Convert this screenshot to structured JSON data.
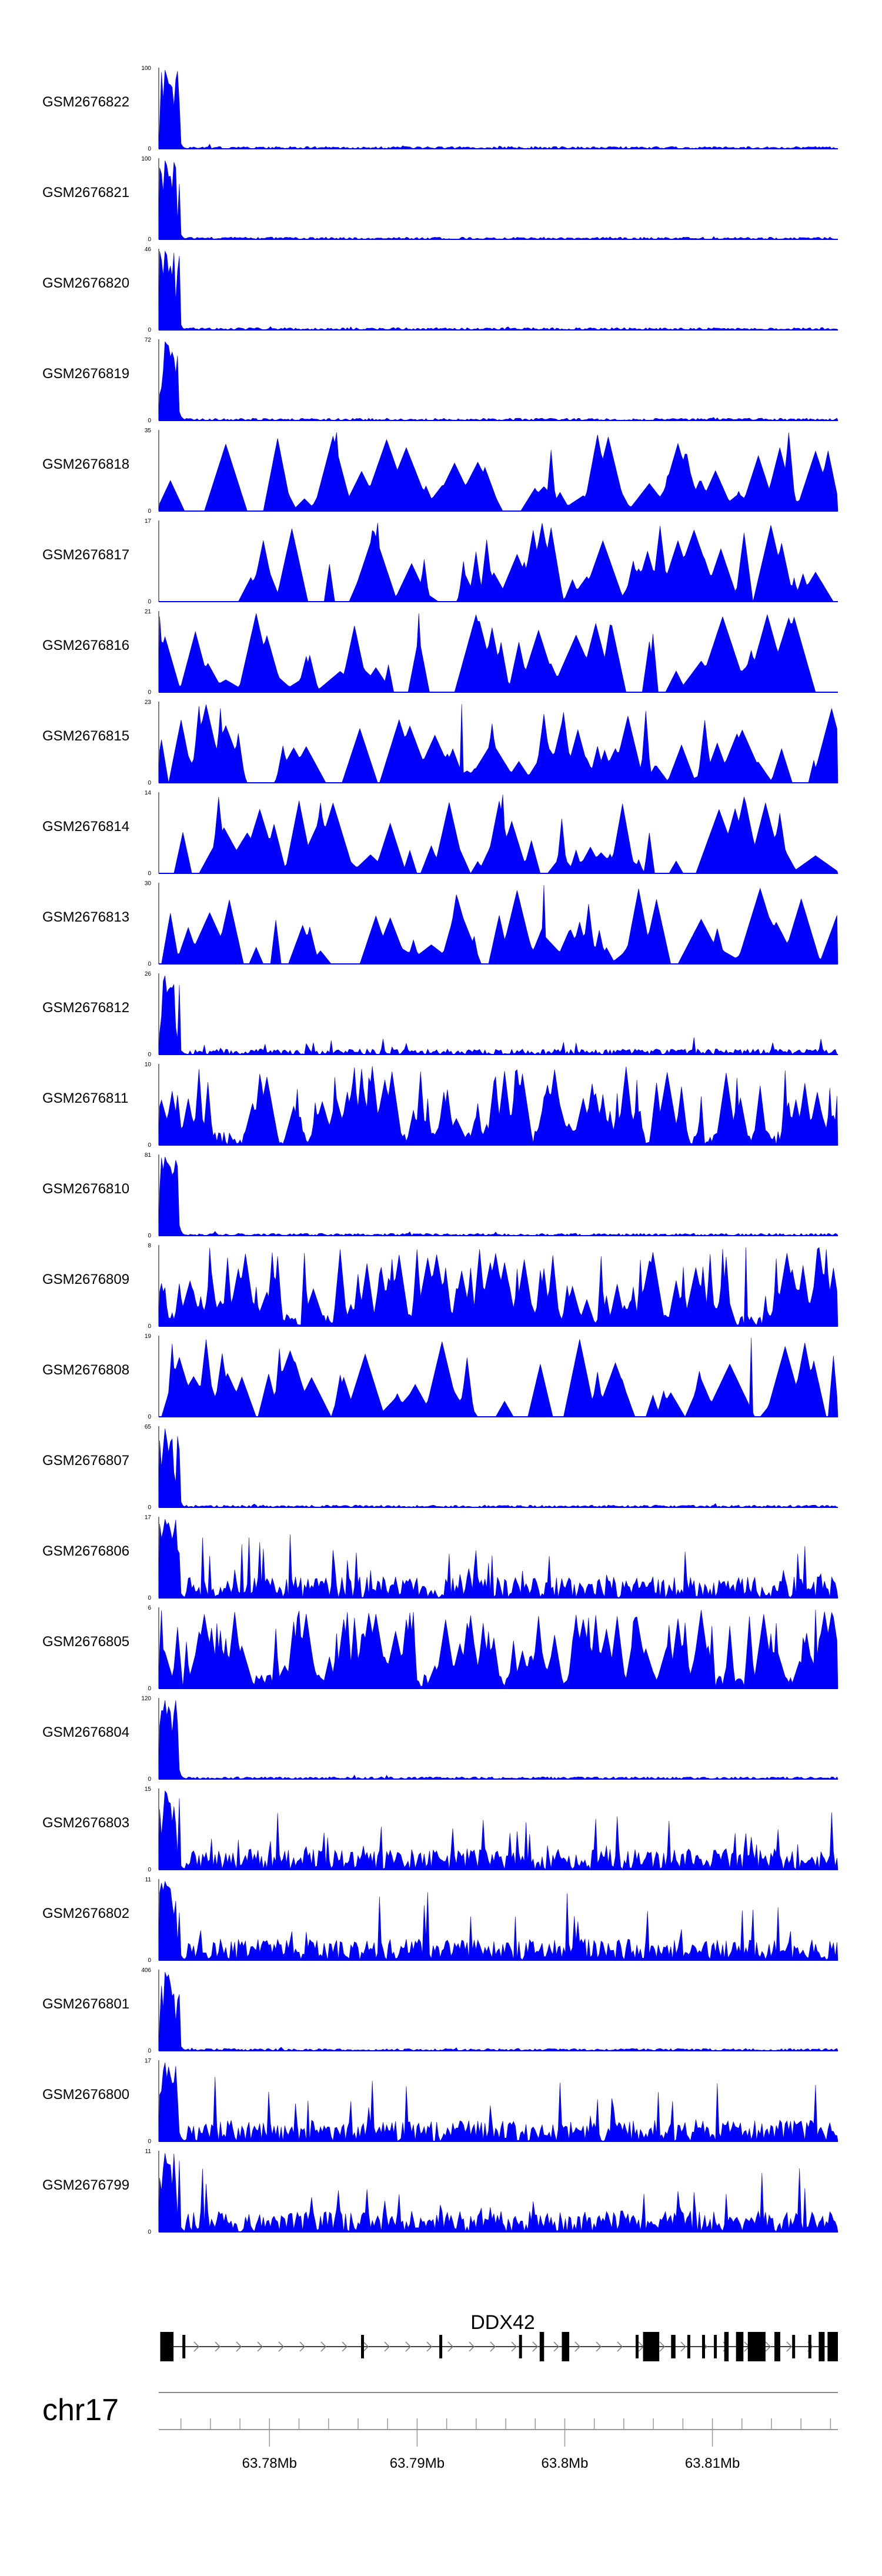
{
  "chart_data": {
    "type": "area",
    "title": "",
    "chromosome": "chr17",
    "x_unit": "Mb",
    "xlim": [
      63.7725,
      63.8185
    ],
    "color": "#0000ff",
    "axis_color": "#000000",
    "tracks": [
      {
        "name": "GSM2676822",
        "ymax": "100",
        "ymin": "0",
        "pattern": "early_peak"
      },
      {
        "name": "GSM2676821",
        "ymax": "100",
        "ymin": "0",
        "pattern": "early_peak"
      },
      {
        "name": "GSM2676820",
        "ymax": "46",
        "ymin": "0",
        "pattern": "early_peak"
      },
      {
        "name": "GSM2676819",
        "ymax": "72",
        "ymin": "0",
        "pattern": "early_peak"
      },
      {
        "name": "GSM2676818",
        "ymax": "35",
        "ymin": "0",
        "pattern": "sparse_spikes"
      },
      {
        "name": "GSM2676817",
        "ymax": "17",
        "ymin": "0",
        "pattern": "sparse_spikes"
      },
      {
        "name": "GSM2676816",
        "ymax": "21",
        "ymin": "0",
        "pattern": "sparse_spikes"
      },
      {
        "name": "GSM2676815",
        "ymax": "23",
        "ymin": "0",
        "pattern": "sparse_spikes"
      },
      {
        "name": "GSM2676814",
        "ymax": "14",
        "ymin": "0",
        "pattern": "sparse_spikes"
      },
      {
        "name": "GSM2676813",
        "ymax": "30",
        "ymin": "0",
        "pattern": "sparse_spikes"
      },
      {
        "name": "GSM2676812",
        "ymax": "26",
        "ymin": "0",
        "pattern": "early_peak_noise"
      },
      {
        "name": "GSM2676811",
        "ymax": "10",
        "ymin": "0",
        "pattern": "dense"
      },
      {
        "name": "GSM2676810",
        "ymax": "81",
        "ymin": "0",
        "pattern": "early_peak"
      },
      {
        "name": "GSM2676809",
        "ymax": "8",
        "ymin": "0",
        "pattern": "dense"
      },
      {
        "name": "GSM2676808",
        "ymax": "19",
        "ymin": "0",
        "pattern": "sparse_spikes"
      },
      {
        "name": "GSM2676807",
        "ymax": "65",
        "ymin": "0",
        "pattern": "early_peak"
      },
      {
        "name": "GSM2676806",
        "ymax": "17",
        "ymin": "0",
        "pattern": "early_peak_dense"
      },
      {
        "name": "GSM2676805",
        "ymax": "6",
        "ymin": "0",
        "pattern": "dense"
      },
      {
        "name": "GSM2676804",
        "ymax": "120",
        "ymin": "0",
        "pattern": "early_peak"
      },
      {
        "name": "GSM2676803",
        "ymax": "15",
        "ymin": "0",
        "pattern": "early_peak_dense"
      },
      {
        "name": "GSM2676802",
        "ymax": "11",
        "ymin": "0",
        "pattern": "early_peak_dense"
      },
      {
        "name": "GSM2676801",
        "ymax": "406",
        "ymin": "0",
        "pattern": "early_peak"
      },
      {
        "name": "GSM2676800",
        "ymax": "17",
        "ymin": "0",
        "pattern": "early_peak_dense"
      },
      {
        "name": "GSM2676799",
        "ymax": "11",
        "ymin": "0",
        "pattern": "early_peak_dense"
      }
    ],
    "gene": {
      "name": "DDX42",
      "start": 63.7725,
      "end": 63.8185,
      "strand": "+",
      "exons": [
        [
          63.7726,
          63.7735
        ],
        [
          63.7741,
          63.7743
        ],
        [
          63.7862,
          63.7864
        ],
        [
          63.7915,
          63.7917
        ],
        [
          63.7969,
          63.7971
        ],
        [
          63.7983,
          63.7986
        ],
        [
          63.7998,
          63.8003
        ],
        [
          63.8048,
          63.805
        ],
        [
          63.8053,
          63.8064
        ],
        [
          63.8072,
          63.8075
        ],
        [
          63.8083,
          63.8085
        ],
        [
          63.8093,
          63.8095
        ],
        [
          63.8101,
          63.8103
        ],
        [
          63.8108,
          63.8111
        ],
        [
          63.8116,
          63.8121
        ],
        [
          63.8124,
          63.8136
        ],
        [
          63.8142,
          63.8146
        ],
        [
          63.8154,
          63.8156
        ],
        [
          63.8165,
          63.8167
        ],
        [
          63.8172,
          63.8176
        ],
        [
          63.8178,
          63.8185
        ]
      ],
      "thick_exons": [
        [
          63.8053,
          63.8064
        ],
        [
          63.8124,
          63.8136
        ],
        [
          63.8172,
          63.8176
        ],
        [
          63.8178,
          63.8185
        ]
      ]
    },
    "major_ticks": [
      63.78,
      63.79,
      63.8,
      63.81
    ],
    "major_tick_labels": [
      "63.78Mb",
      "63.79Mb",
      "63.8Mb",
      "63.81Mb"
    ],
    "minor_tick_step": 0.002
  }
}
